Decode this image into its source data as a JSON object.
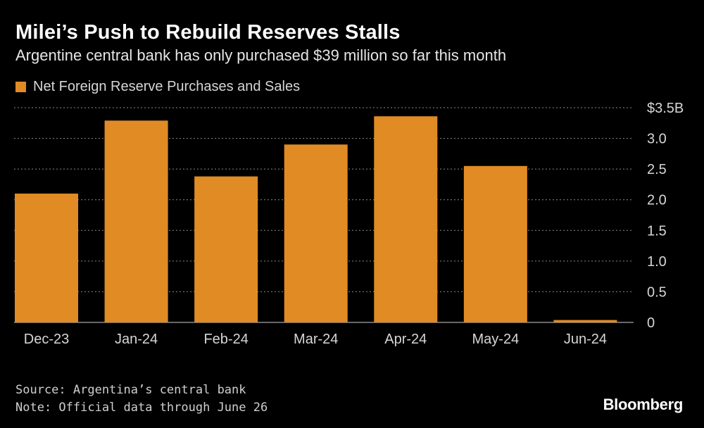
{
  "header": {
    "title": "Milei’s Push to Rebuild Reserves Stalls",
    "subtitle": "Argentine central bank has only purchased $39 million so far this month"
  },
  "colors": {
    "background": "#000000",
    "bar": "#e08b24",
    "grid": "#8a8a8a",
    "text": "#ffffff"
  },
  "chart_data": {
    "type": "bar",
    "legend": [
      "Net Foreign Reserve Purchases and Sales"
    ],
    "categories": [
      "Dec-23",
      "Jan-24",
      "Feb-24",
      "Mar-24",
      "Apr-24",
      "May-24",
      "Jun-24"
    ],
    "series": [
      {
        "name": "Net Foreign Reserve Purchases and Sales",
        "values": [
          2.1,
          3.29,
          2.38,
          2.9,
          3.36,
          2.55,
          0.039
        ]
      }
    ],
    "ylim": [
      0,
      3.5
    ],
    "yticks": [
      0,
      0.5,
      1.0,
      1.5,
      2.0,
      2.5,
      3.0,
      3.5
    ],
    "ytick_labels": [
      "0",
      "0.5",
      "1.0",
      "1.5",
      "2.0",
      "2.5",
      "3.0",
      "$3.5B"
    ],
    "axis_position": "right",
    "grid": true
  },
  "footer": {
    "source": "Source: Argentina’s central bank",
    "note": "Note: Official data through June 26",
    "brand": "Bloomberg"
  }
}
